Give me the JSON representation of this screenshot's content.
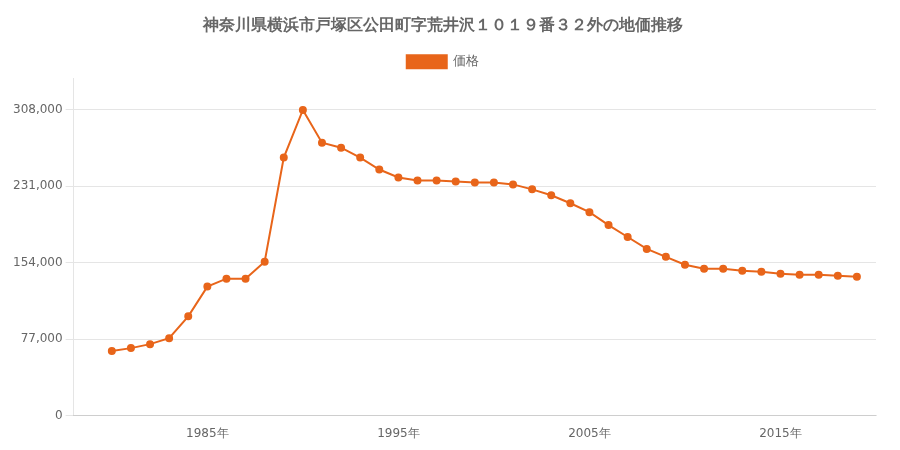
{
  "chart_data": {
    "type": "line",
    "title": "神奈川県横浜市戸塚区公田町字荒井沢１０１９番３２外の地価推移",
    "x": [
      1980,
      1981,
      1982,
      1983,
      1984,
      1985,
      1986,
      1987,
      1988,
      1989,
      1990,
      1991,
      1992,
      1993,
      1994,
      1995,
      1996,
      1997,
      1998,
      1999,
      2000,
      2001,
      2002,
      2003,
      2004,
      2005,
      2006,
      2007,
      2008,
      2009,
      2010,
      2011,
      2012,
      2013,
      2014,
      2015,
      2016,
      2017,
      2018,
      2019
    ],
    "series": [
      {
        "name": "価格",
        "color": "#E8651A",
        "marker": "circle",
        "line_style": "solid",
        "values": [
          65000,
          68000,
          72000,
          78000,
          100000,
          130000,
          138000,
          138000,
          155000,
          260000,
          308000,
          275000,
          270000,
          260000,
          248000,
          240000,
          237000,
          237000,
          236000,
          235000,
          235000,
          233000,
          228000,
          222000,
          214000,
          205000,
          192000,
          180000,
          168000,
          160000,
          152000,
          148000,
          148000,
          146000,
          145000,
          143000,
          142000,
          142000,
          141000,
          140000
        ]
      }
    ],
    "xlim": [
      1978,
      2020
    ],
    "xticks": [
      {
        "value": 1985,
        "label": "1985年"
      },
      {
        "value": 1995,
        "label": "1995年"
      },
      {
        "value": 2005,
        "label": "2005年"
      },
      {
        "value": 2015,
        "label": "2015年"
      }
    ],
    "ylim": [
      0,
      340000
    ],
    "yticks": [
      0,
      {
        "value": 77000,
        "label": "77,000"
      },
      {
        "value": 154000,
        "label": "154,000"
      },
      {
        "value": 231000,
        "label": "231,000"
      },
      {
        "value": 308000,
        "label": "308,000"
      }
    ],
    "grid": "y",
    "legend": "top"
  }
}
